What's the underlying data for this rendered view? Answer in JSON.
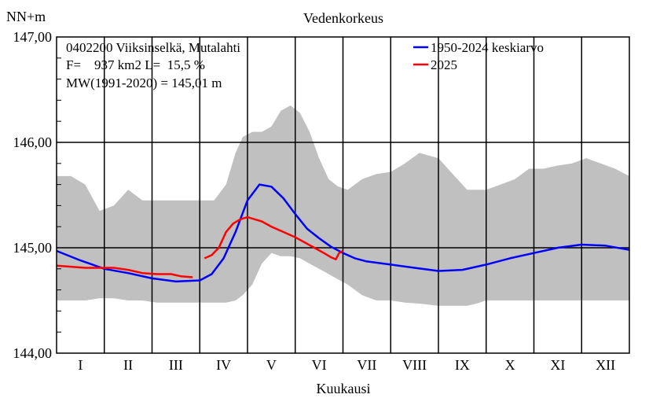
{
  "chart_data": {
    "type": "line",
    "title": "Vedenkorkeus",
    "xlabel": "Kuukausi",
    "ylabel": "NN+m",
    "ylim": [
      144.0,
      147.0
    ],
    "yticks": [
      "144,00",
      "145,00",
      "146,00",
      "147,00"
    ],
    "categories": [
      "I",
      "II",
      "III",
      "IV",
      "V",
      "VI",
      "VII",
      "VIII",
      "IX",
      "X",
      "XI",
      "XII"
    ],
    "info_lines": [
      "0402200 Viiksinselkä, Mutalahti",
      "F=    937 km2 L=  15,5 %",
      "MW(1991-2020) = 145,01 m"
    ],
    "legend_position": "top-right",
    "band": {
      "x": [
        0,
        0.3,
        0.6,
        0.9,
        1.2,
        1.5,
        1.8,
        2.1,
        2.4,
        2.7,
        3.0,
        3.3,
        3.55,
        3.75,
        3.9,
        4.1,
        4.3,
        4.5,
        4.7,
        4.9,
        5.1,
        5.3,
        5.5,
        5.7,
        5.9,
        6.1,
        6.4,
        6.7,
        7.0,
        7.3,
        7.6,
        8.0,
        8.3,
        8.6,
        8.8,
        9.0,
        9.3,
        9.6,
        9.9,
        10.2,
        10.5,
        10.8,
        11.1,
        11.4,
        11.7,
        12.0
      ],
      "upper": [
        145.68,
        145.68,
        145.6,
        145.35,
        145.4,
        145.55,
        145.45,
        145.45,
        145.45,
        145.45,
        145.45,
        145.45,
        145.6,
        145.9,
        146.05,
        146.1,
        146.1,
        146.15,
        146.3,
        146.35,
        146.28,
        146.1,
        145.85,
        145.65,
        145.58,
        145.55,
        145.65,
        145.7,
        145.72,
        145.8,
        145.9,
        145.85,
        145.7,
        145.55,
        145.55,
        145.55,
        145.6,
        145.65,
        145.75,
        145.75,
        145.78,
        145.8,
        145.85,
        145.8,
        145.75,
        145.68
      ],
      "lower": [
        144.5,
        144.5,
        144.5,
        144.52,
        144.52,
        144.5,
        144.5,
        144.48,
        144.48,
        144.48,
        144.48,
        144.48,
        144.48,
        144.5,
        144.55,
        144.65,
        144.85,
        144.95,
        144.92,
        144.92,
        144.9,
        144.85,
        144.8,
        144.75,
        144.7,
        144.65,
        144.55,
        144.5,
        144.5,
        144.48,
        144.47,
        144.45,
        144.45,
        144.45,
        144.47,
        144.5,
        144.5,
        144.5,
        144.5,
        144.5,
        144.5,
        144.5,
        144.5,
        144.5,
        144.5,
        144.5
      ]
    },
    "series": [
      {
        "name": "1950-2024 keskiarvo",
        "color": "#0000ff",
        "x": [
          0,
          0.5,
          1.0,
          1.5,
          2.0,
          2.5,
          3.0,
          3.25,
          3.5,
          3.75,
          4.0,
          4.25,
          4.5,
          4.75,
          5.0,
          5.25,
          5.5,
          5.75,
          6.0,
          6.25,
          6.5,
          7.0,
          7.5,
          8.0,
          8.5,
          9.0,
          9.5,
          10.0,
          10.5,
          11.0,
          11.5,
          12.0
        ],
        "values": [
          144.97,
          144.88,
          144.8,
          144.76,
          144.71,
          144.68,
          144.69,
          144.75,
          144.9,
          145.15,
          145.45,
          145.6,
          145.58,
          145.47,
          145.32,
          145.18,
          145.09,
          145.01,
          144.95,
          144.9,
          144.87,
          144.84,
          144.81,
          144.78,
          144.79,
          144.84,
          144.9,
          144.95,
          145.0,
          145.03,
          145.02,
          144.98
        ]
      },
      {
        "name": "2025",
        "color": "#ff0000",
        "x": [
          0,
          0.3,
          0.6,
          0.9,
          1.2,
          1.5,
          1.8,
          2.1,
          2.4,
          2.6,
          2.85
        ],
        "values": [
          144.83,
          144.82,
          144.81,
          144.81,
          144.81,
          144.79,
          144.76,
          144.75,
          144.75,
          144.73,
          144.72
        ]
      },
      {
        "name": "2025",
        "color": "#ff0000",
        "x": [
          3.1,
          3.25,
          3.4,
          3.55,
          3.7,
          3.85,
          4.0,
          4.15,
          4.3,
          4.5,
          4.75,
          5.0,
          5.2,
          5.4,
          5.6,
          5.75,
          5.85,
          5.92,
          6.0
        ],
        "values": [
          144.9,
          144.93,
          145.0,
          145.15,
          145.23,
          145.27,
          145.29,
          145.27,
          145.25,
          145.2,
          145.15,
          145.1,
          145.05,
          145.0,
          144.95,
          144.91,
          144.89,
          144.95,
          144.97
        ]
      }
    ]
  }
}
